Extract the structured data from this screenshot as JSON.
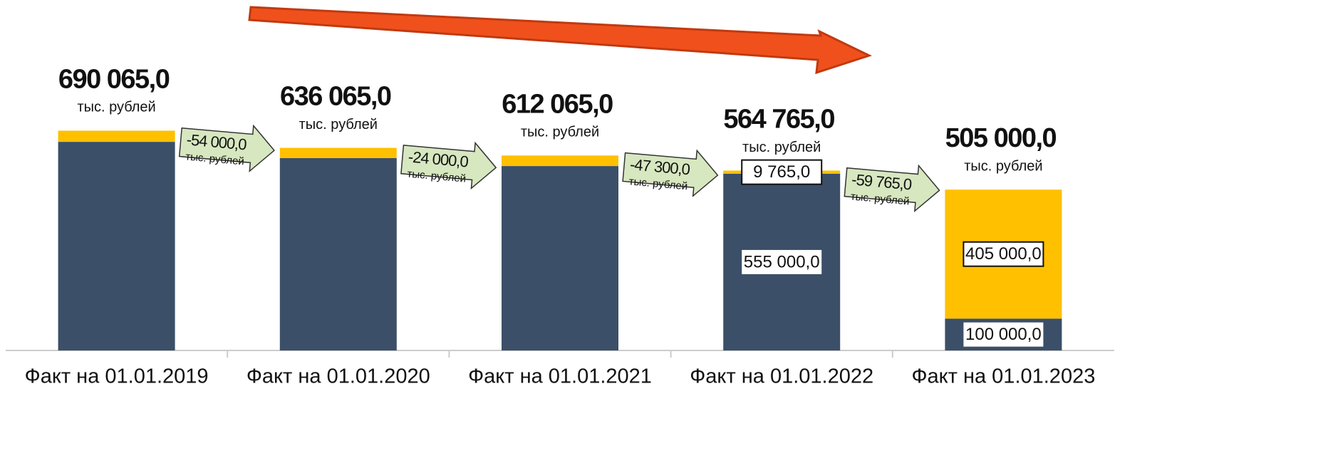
{
  "chart_data": {
    "type": "stacked_bar",
    "categories": [
      "Факт на 01.01.2019",
      "Факт на 01.01.2020",
      "Факт на 01.01.2021",
      "Факт на 01.01.2022",
      "Факт на 01.01.2023"
    ],
    "series": [
      {
        "color": "#3b4f68",
        "values": [
          655000,
          604000,
          579000,
          555000,
          100000
        ],
        "value_labels": [
          null,
          null,
          null,
          "555 000,0",
          "100 000,0"
        ]
      },
      {
        "color": "#ffc000",
        "values": [
          35065,
          32065,
          33065,
          9765,
          405000
        ],
        "value_labels": [
          null,
          null,
          null,
          "9 765,0",
          "405 000,0"
        ]
      }
    ],
    "totals": [
      690065,
      636065,
      612065,
      564765,
      505000
    ],
    "total_labels": [
      "690 065,0",
      "636 065,0",
      "612 065,0",
      "564 765,0",
      "505 000,0"
    ],
    "unit_label": "тыс. рублей",
    "changes": [
      -54000,
      -24000,
      -47300,
      -59765
    ],
    "change_labels": [
      "-54 000,0",
      "-24 000,0",
      "-47 300,0",
      "-59 765,0"
    ],
    "ylim": [
      0,
      700000
    ]
  }
}
